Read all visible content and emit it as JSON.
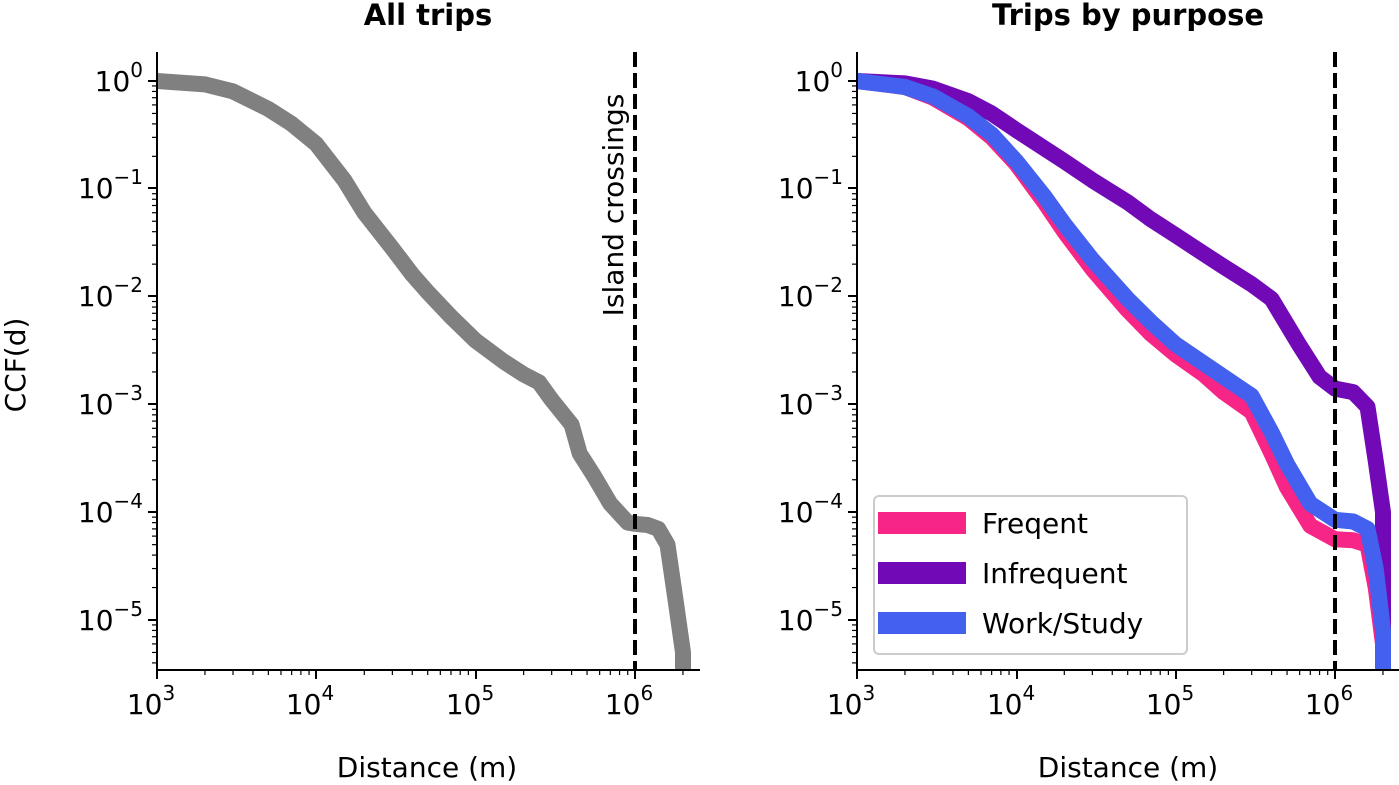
{
  "chart_data": [
    {
      "type": "line",
      "title": "All trips",
      "xlabel": "Distance (m)",
      "ylabel": "CCF(d)",
      "xscale": "log",
      "yscale": "log",
      "xlim": [
        1000,
        2500000
      ],
      "ylim": [
        3.5e-06,
        1.8
      ],
      "xticks": [
        {
          "base": "10",
          "exp": "3"
        },
        {
          "base": "10",
          "exp": "4"
        },
        {
          "base": "10",
          "exp": "5"
        },
        {
          "base": "10",
          "exp": "6"
        }
      ],
      "yticks": [
        {
          "base": "10",
          "exp": "0"
        },
        {
          "base": "10",
          "exp": "−1"
        },
        {
          "base": "10",
          "exp": "−2"
        },
        {
          "base": "10",
          "exp": "−3"
        },
        {
          "base": "10",
          "exp": "−4"
        },
        {
          "base": "10",
          "exp": "−5"
        }
      ],
      "annotation": {
        "text": "Island crossings",
        "x": 1000000
      },
      "grid": false,
      "series": [
        {
          "color": "#808080",
          "x": [
            1000,
            2000,
            3000,
            5000,
            7000,
            10000,
            15000,
            20000,
            30000,
            40000,
            50000,
            70000,
            100000,
            150000,
            200000,
            250000,
            300000,
            400000,
            450000,
            550000,
            700000,
            900000,
            1000000,
            1200000,
            1400000,
            1600000,
            1800000,
            2000000,
            2000000
          ],
          "y": [
            1.0,
            0.93,
            0.8,
            0.55,
            0.4,
            0.26,
            0.12,
            0.06,
            0.028,
            0.016,
            0.011,
            0.0065,
            0.0039,
            0.0025,
            0.0019,
            0.0016,
            0.0011,
            0.00065,
            0.00035,
            0.00022,
            0.00012,
            8e-05,
            7.8e-05,
            7.6e-05,
            7e-05,
            5e-05,
            1.5e-05,
            5e-06,
            3.5e-06
          ]
        }
      ]
    },
    {
      "type": "line",
      "title": "Trips by purpose",
      "xlabel": "Distance (m)",
      "ylabel": "",
      "xscale": "log",
      "yscale": "log",
      "xlim": [
        1000,
        2500000
      ],
      "ylim": [
        3.5e-06,
        1.8
      ],
      "xticks": [
        {
          "base": "10",
          "exp": "3"
        },
        {
          "base": "10",
          "exp": "4"
        },
        {
          "base": "10",
          "exp": "5"
        },
        {
          "base": "10",
          "exp": "6"
        }
      ],
      "yticks": [
        {
          "base": "10",
          "exp": "0"
        },
        {
          "base": "10",
          "exp": "−1"
        },
        {
          "base": "10",
          "exp": "−2"
        },
        {
          "base": "10",
          "exp": "−3"
        },
        {
          "base": "10",
          "exp": "−4"
        },
        {
          "base": "10",
          "exp": "−5"
        }
      ],
      "annotation": {
        "text": "",
        "x": 1000000
      },
      "legend": "lower-left",
      "grid": false,
      "series": [
        {
          "name": "Freqent",
          "color": "#F72585",
          "x": [
            1000,
            2000,
            3000,
            5000,
            7000,
            10000,
            15000,
            20000,
            30000,
            50000,
            70000,
            100000,
            150000,
            200000,
            300000,
            400000,
            500000,
            700000,
            1000000,
            1300000,
            1600000,
            1800000,
            2000000,
            2000000
          ],
          "y": [
            1.0,
            0.88,
            0.7,
            0.45,
            0.3,
            0.17,
            0.075,
            0.04,
            0.018,
            0.0075,
            0.0045,
            0.0029,
            0.0019,
            0.0013,
            0.00085,
            0.00035,
            0.00017,
            7.5e-05,
            5.6e-05,
            5.5e-05,
            5e-05,
            2e-05,
            6e-06,
            3.5e-06
          ]
        },
        {
          "name": "Infrequent",
          "color": "#7209B7",
          "x": [
            1000,
            2000,
            3000,
            5000,
            7000,
            10000,
            20000,
            30000,
            50000,
            70000,
            100000,
            150000,
            200000,
            300000,
            400000,
            500000,
            600000,
            800000,
            1000000,
            1300000,
            1600000,
            1800000,
            2000000,
            2000000
          ],
          "y": [
            1.0,
            0.95,
            0.85,
            0.65,
            0.5,
            0.35,
            0.18,
            0.12,
            0.075,
            0.052,
            0.037,
            0.025,
            0.019,
            0.013,
            0.0095,
            0.0055,
            0.0035,
            0.0018,
            0.0014,
            0.0013,
            0.00095,
            0.0003,
            0.0001,
            3.5e-06
          ]
        },
        {
          "name": "Work/Study",
          "color": "#4361EE",
          "x": [
            1000,
            2000,
            3000,
            5000,
            7000,
            10000,
            15000,
            20000,
            30000,
            50000,
            70000,
            100000,
            150000,
            200000,
            300000,
            400000,
            500000,
            700000,
            1000000,
            1300000,
            1600000,
            1800000,
            2000000,
            2000000
          ],
          "y": [
            1.0,
            0.88,
            0.72,
            0.47,
            0.32,
            0.18,
            0.085,
            0.047,
            0.022,
            0.0095,
            0.0058,
            0.0036,
            0.0024,
            0.0018,
            0.0012,
            0.00055,
            0.00028,
            0.00012,
            8.5e-05,
            8.2e-05,
            7e-05,
            3e-05,
            8e-06,
            3.5e-06
          ]
        }
      ]
    }
  ]
}
